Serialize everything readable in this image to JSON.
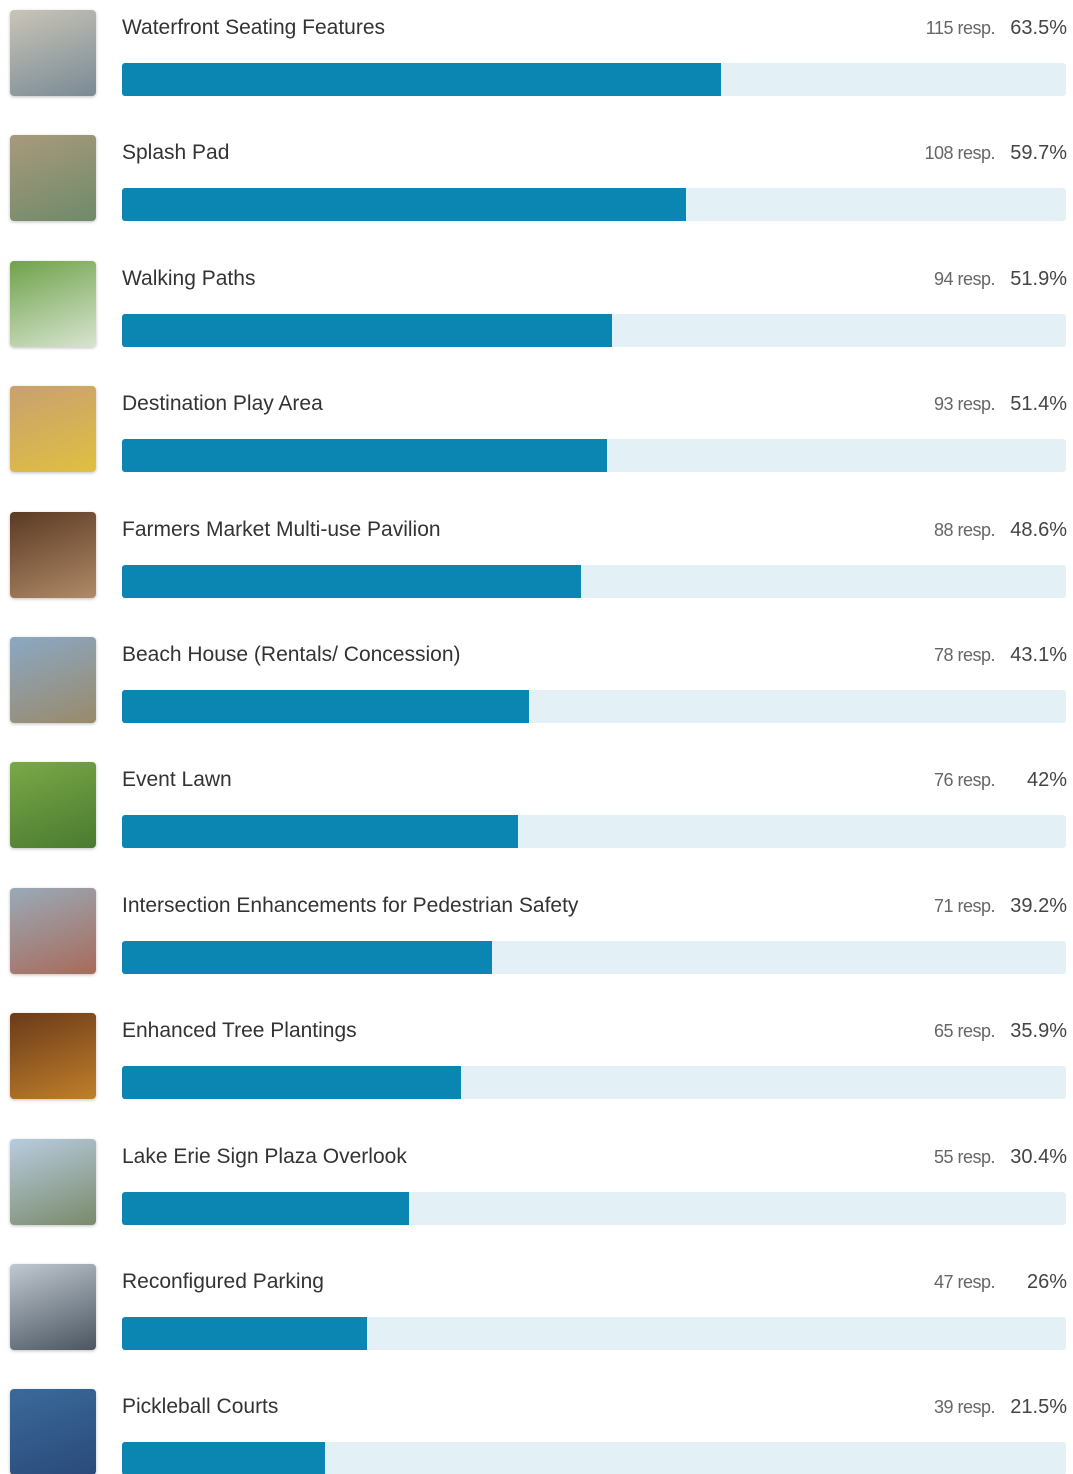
{
  "xlim": [
    0,
    100
  ],
  "items": [
    {
      "label": "Waterfront Seating Features",
      "responses": 115,
      "responses_label": "115 resp.",
      "percent": 63.5,
      "percent_label": "63.5%"
    },
    {
      "label": "Splash Pad",
      "responses": 108,
      "responses_label": "108 resp.",
      "percent": 59.7,
      "percent_label": "59.7%"
    },
    {
      "label": "Walking Paths",
      "responses": 94,
      "responses_label": "94 resp.",
      "percent": 51.9,
      "percent_label": "51.9%"
    },
    {
      "label": "Destination Play Area",
      "responses": 93,
      "responses_label": "93 resp.",
      "percent": 51.4,
      "percent_label": "51.4%"
    },
    {
      "label": "Farmers Market Multi-use Pavilion",
      "responses": 88,
      "responses_label": "88 resp.",
      "percent": 48.6,
      "percent_label": "48.6%"
    },
    {
      "label": "Beach House (Rentals/ Concession)",
      "responses": 78,
      "responses_label": "78 resp.",
      "percent": 43.1,
      "percent_label": "43.1%"
    },
    {
      "label": "Event Lawn",
      "responses": 76,
      "responses_label": "76 resp.",
      "percent": 42,
      "percent_label": "42%"
    },
    {
      "label": "Intersection Enhancements for Pedestrian Safety",
      "responses": 71,
      "responses_label": "71 resp.",
      "percent": 39.2,
      "percent_label": "39.2%"
    },
    {
      "label": "Enhanced Tree Plantings",
      "responses": 65,
      "responses_label": "65 resp.",
      "percent": 35.9,
      "percent_label": "35.9%"
    },
    {
      "label": "Lake Erie Sign Plaza Overlook",
      "responses": 55,
      "responses_label": "55 resp.",
      "percent": 30.4,
      "percent_label": "30.4%"
    },
    {
      "label": "Reconfigured Parking",
      "responses": 47,
      "responses_label": "47 resp.",
      "percent": 26,
      "percent_label": "26%"
    },
    {
      "label": "Pickleball Courts",
      "responses": 39,
      "responses_label": "39 resp.",
      "percent": 21.5,
      "percent_label": "21.5%"
    }
  ]
}
